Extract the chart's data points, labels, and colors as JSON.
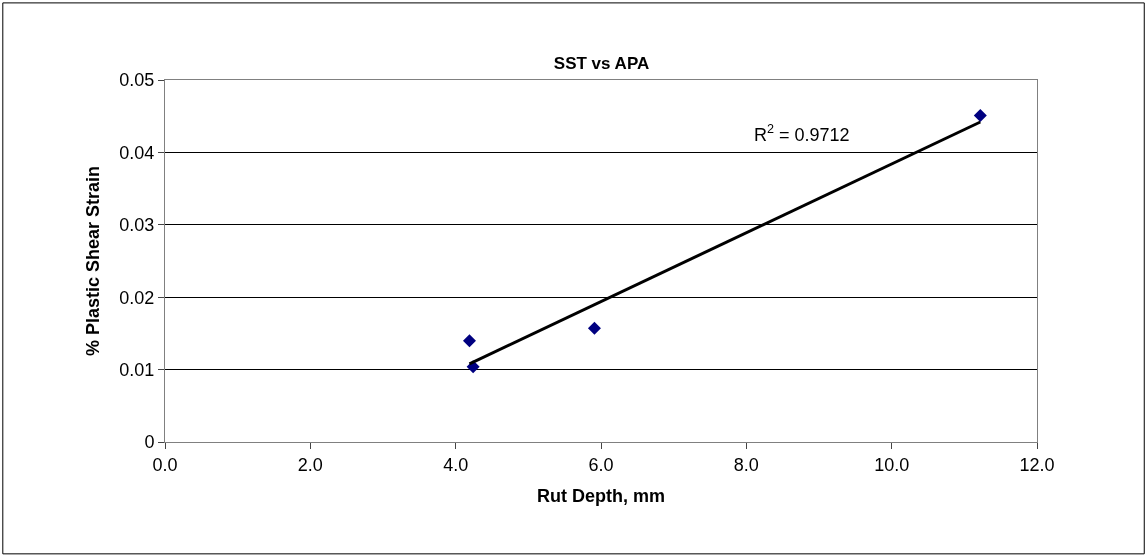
{
  "chart_data": {
    "type": "scatter",
    "title": "SST vs APA",
    "xlabel": "Rut Depth, mm",
    "ylabel": "% Plastic Shear Strain",
    "series": [
      {
        "color": "#000080",
        "marker": "diamond",
        "x": [
          4.19,
          4.24,
          5.91,
          11.22
        ],
        "values": [
          0.014,
          0.0104,
          0.0157,
          0.0451
        ]
      },
      {
        "type": "line",
        "color": "#000000",
        "marker": "none",
        "line_style": "solid",
        "x": [
          4.19,
          11.22
        ],
        "values": [
          0.0108,
          0.0442
        ]
      }
    ],
    "annotations": [
      "R$^{2}$ = 0.9712"
    ],
    "xlim": [
      0,
      12
    ],
    "xticks": [
      {
        "value": 0,
        "label": "0.0"
      },
      {
        "value": 2,
        "label": "2.0"
      },
      {
        "value": 4,
        "label": "4.0"
      },
      {
        "value": 6,
        "label": "6.0"
      },
      {
        "value": 8,
        "label": "8.0"
      },
      {
        "value": 10,
        "label": "10.0"
      },
      {
        "value": 12,
        "label": "12.0"
      }
    ],
    "ylim": [
      0,
      0.05
    ],
    "yticks": [
      0,
      0.01,
      0.02,
      0.03,
      0.04,
      0.05
    ],
    "grid": "y"
  }
}
